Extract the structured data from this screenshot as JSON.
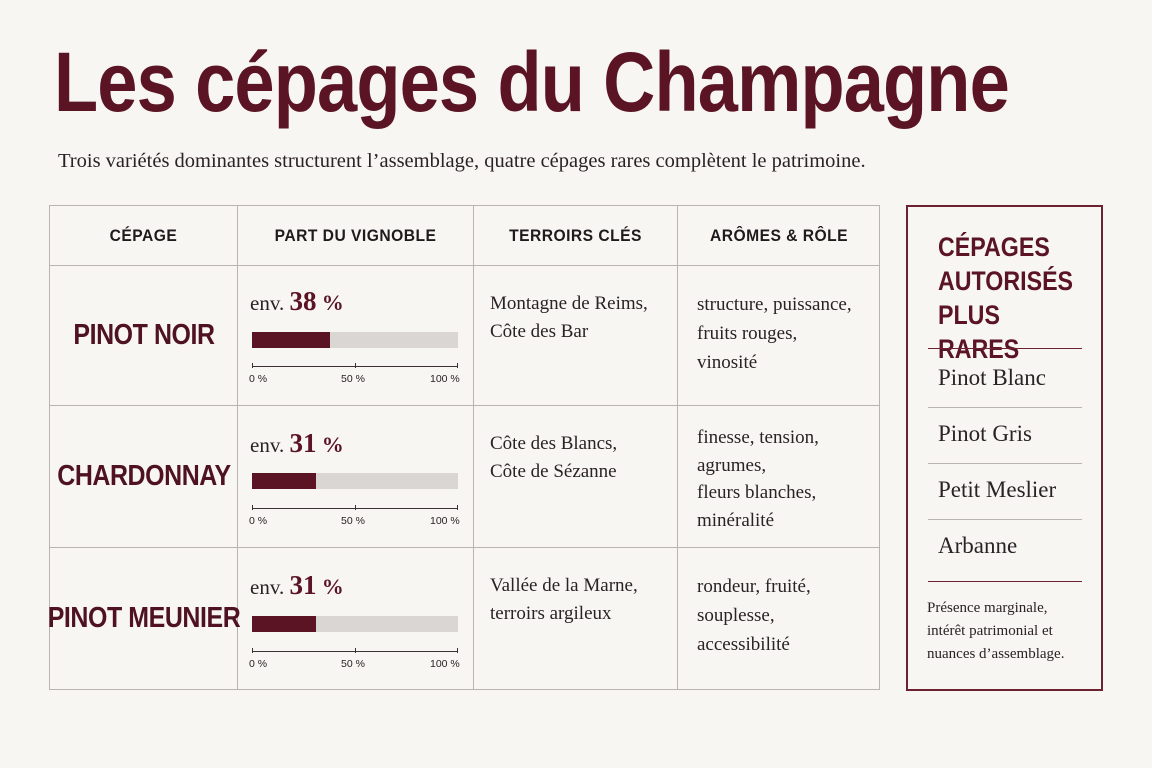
{
  "title": "Les cépages du Champagne",
  "subtitle": "Trois variétés dominantes structurent l’assemblage, quatre cépages rares complètent le patrimoine.",
  "table": {
    "headers": [
      "CÉPAGE",
      "PART DU VIGNOBLE",
      "TERROIRS CLÉS",
      "ARÔMES & RÔLE"
    ],
    "rows": [
      {
        "grape": "PINOT NOIR",
        "prefix": "env.",
        "percent": "38",
        "unit": "%",
        "share": 0.38,
        "terroirs": [
          "Montagne de Reims,",
          "Côte des Bar"
        ],
        "aromes": [
          "structure, puissance,",
          "fruits rouges,",
          "vinosité"
        ]
      },
      {
        "grape": "CHARDONNAY",
        "prefix": "env.",
        "percent": "31",
        "unit": "%",
        "share": 0.31,
        "terroirs": [
          "Côte des Blancs,",
          "Côte de Sézanne"
        ],
        "aromes": [
          "finesse, tension,",
          "agrumes,",
          "fleurs blanches,",
          "minéralité"
        ]
      },
      {
        "grape": "PINOT MEUNIER",
        "prefix": "env.",
        "percent": "31",
        "unit": "%",
        "share": 0.31,
        "terroirs": [
          "Vallée de la Marne,",
          "terroirs argileux"
        ],
        "aromes": [
          "rondeur, fruité,",
          "souplesse,",
          "accessibilité"
        ]
      }
    ],
    "axis_labels": [
      "0 %",
      "50 %",
      "100 %"
    ]
  },
  "rare": {
    "title_lines": [
      "CÉPAGES",
      "AUTORISÉS",
      "PLUS RARES"
    ],
    "items": [
      "Pinot Blanc",
      "Pinot Gris",
      "Petit Meslier",
      "Arbanne"
    ],
    "note_lines": [
      "Présence marginale,",
      "intérêt patrimonial et",
      "nuances d’assemblage."
    ]
  },
  "colors": {
    "accent": "#5a1424",
    "bar_track": "#d9d6d4",
    "border": "#b9b4b2",
    "background": "#f7f6f3"
  }
}
